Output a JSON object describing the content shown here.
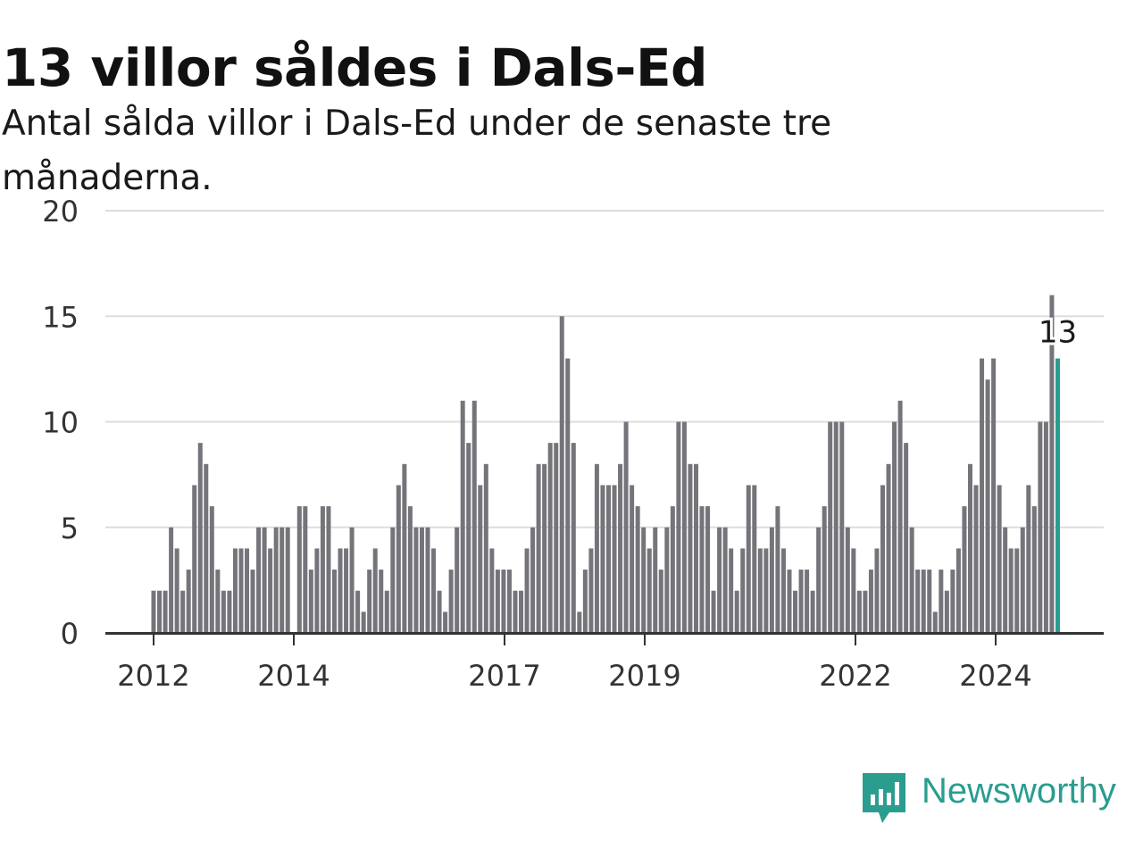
{
  "header": {
    "title": "13 villor såldes i Dals-Ed",
    "subtitle": "Antal sålda villor i Dals-Ed under de senaste tre månaderna."
  },
  "brand": {
    "name": "Newsworthy",
    "icon": "newsworthy-chart-icon",
    "color": "#2a9d8f"
  },
  "chart_data": {
    "type": "bar",
    "title": "13 villor såldes i Dals-Ed",
    "subtitle": "Antal sålda villor i Dals-Ed under de senaste tre månaderna.",
    "xlabel": "",
    "ylabel": "",
    "ylim": [
      0,
      20
    ],
    "yticks": [
      0,
      5,
      10,
      15,
      20
    ],
    "xtick_labels": [
      "2012",
      "2014",
      "2017",
      "2019",
      "2022",
      "2024"
    ],
    "grid": true,
    "bar_color": "#75747a",
    "highlight_color": "#2a9d8f",
    "highlight_label": "13",
    "series": [
      {
        "values": [
          2,
          2,
          2,
          5,
          4,
          2,
          3,
          7,
          9,
          8,
          6,
          3,
          2,
          2,
          4,
          4,
          4,
          3,
          5,
          5,
          4,
          5,
          5,
          5,
          0,
          6,
          6,
          3,
          4,
          6,
          6,
          3,
          4,
          4,
          5,
          2,
          1,
          3,
          4,
          3,
          2,
          5,
          7,
          8,
          6,
          5,
          5,
          5,
          4,
          2,
          1,
          3,
          5,
          11,
          9,
          11,
          7,
          8,
          4,
          3,
          3,
          3,
          2,
          2,
          4,
          5,
          8,
          8,
          9,
          9,
          15,
          13,
          9,
          1,
          3,
          4,
          8,
          7,
          7,
          7,
          8,
          10,
          7,
          6,
          5,
          4,
          5,
          3,
          5,
          6,
          10,
          10,
          8,
          8,
          6,
          6,
          2,
          5,
          5,
          4,
          2,
          4,
          7,
          7,
          4,
          4,
          5,
          6,
          4,
          3,
          2,
          3,
          3,
          2,
          5,
          6,
          10,
          10,
          10,
          5,
          4,
          2,
          2,
          3,
          4,
          7,
          8,
          10,
          11,
          9,
          5,
          3,
          3,
          3,
          1,
          3,
          2,
          3,
          4,
          6,
          8,
          7,
          13,
          12,
          13,
          7,
          5,
          4,
          4,
          5,
          7,
          6,
          10,
          10,
          16,
          13
        ]
      }
    ]
  }
}
